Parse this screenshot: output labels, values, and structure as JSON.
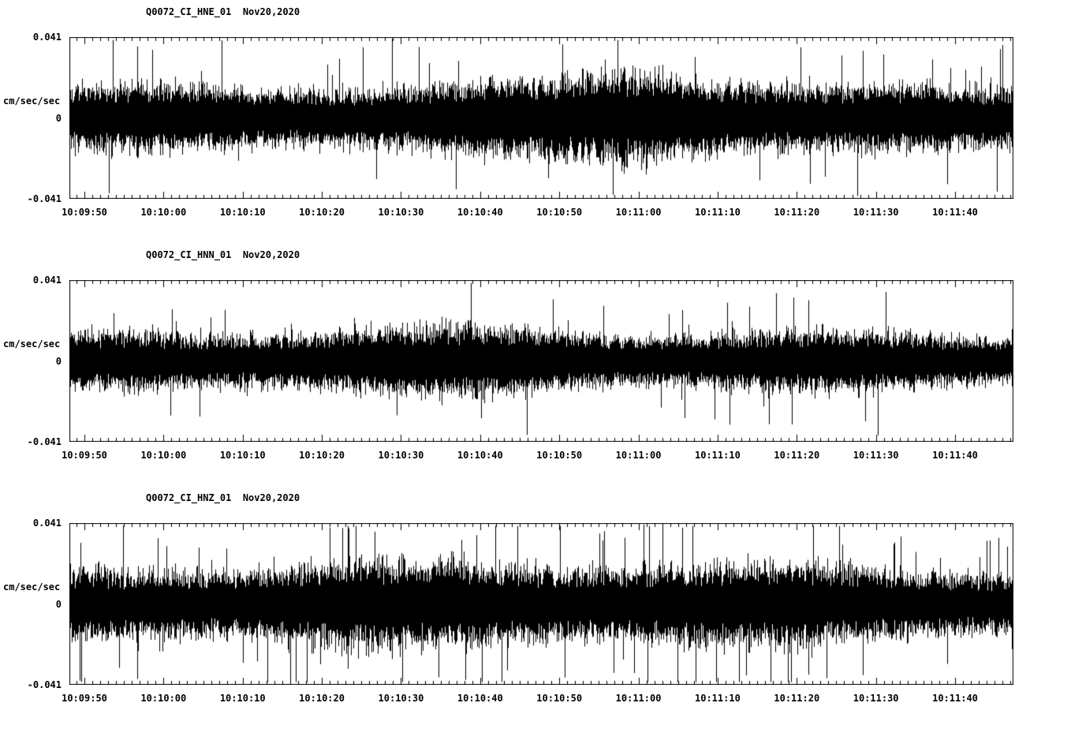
{
  "page": {
    "background": "#ffffff",
    "trace_color": "#000000",
    "axis_color": "#000000"
  },
  "chart_data": [
    {
      "type": "line",
      "kind": "seismogram",
      "title": "Q0072_CI_HNE_01  Nov20,2020",
      "station": "Q0072_CI_HNE_01",
      "date": "Nov20,2020",
      "ylabel": "cm/sec/sec",
      "yticklabels": [
        "0.041",
        "0",
        "-0.041"
      ],
      "ylim": [
        -0.041,
        0.041
      ],
      "x_tick_interval_seconds": 10,
      "xticklabels": [
        "10:09:50",
        "10:10:00",
        "10:10:10",
        "10:10:20",
        "10:10:30",
        "10:10:40",
        "10:10:50",
        "10:11:00",
        "10:11:10",
        "10:11:20",
        "10:11:30",
        "10:11:40"
      ],
      "grid": false,
      "legend": "none",
      "series": [
        {
          "name": "Q0072_CI_HNE_01",
          "signal": "seismic-noise",
          "seed": 20201,
          "tail_prob": 0.02,
          "envelope": [
            [
              0,
              0.0135
            ],
            [
              0.2,
              0.0125
            ],
            [
              0.4,
              0.013
            ],
            [
              0.52,
              0.015
            ],
            [
              0.6,
              0.0205
            ],
            [
              0.68,
              0.018
            ],
            [
              0.78,
              0.0135
            ],
            [
              0.9,
              0.013
            ],
            [
              1,
              0.0145
            ]
          ],
          "spikes": [
            [
              0.342,
              0.041
            ]
          ]
        }
      ]
    },
    {
      "type": "line",
      "kind": "seismogram",
      "title": "Q0072_CI_HNN_01  Nov20,2020",
      "station": "Q0072_CI_HNN_01",
      "date": "Nov20,2020",
      "ylabel": "cm/sec/sec",
      "yticklabels": [
        "0.041",
        "0",
        "-0.041"
      ],
      "ylim": [
        -0.041,
        0.041
      ],
      "x_tick_interval_seconds": 10,
      "xticklabels": [
        "10:09:50",
        "10:10:00",
        "10:10:10",
        "10:10:20",
        "10:10:30",
        "10:10:40",
        "10:10:50",
        "10:11:00",
        "10:11:10",
        "10:11:20",
        "10:11:30",
        "10:11:40"
      ],
      "grid": false,
      "legend": "none",
      "series": [
        {
          "name": "Q0072_CI_HNN_01",
          "signal": "seismic-noise",
          "seed": 20202,
          "tail_prob": 0.015,
          "envelope": [
            [
              0,
              0.0115
            ],
            [
              0.3,
              0.0125
            ],
            [
              0.42,
              0.013
            ],
            [
              0.6,
              0.0115
            ],
            [
              0.8,
              0.012
            ],
            [
              1,
              0.0115
            ]
          ],
          "spikes": [
            [
              0.856,
              -0.0385
            ]
          ]
        }
      ]
    },
    {
      "type": "line",
      "kind": "seismogram",
      "title": "Q0072_CI_HNZ_01  Nov20,2020",
      "station": "Q0072_CI_HNZ_01",
      "date": "Nov20,2020",
      "ylabel": "cm/sec/sec",
      "yticklabels": [
        "0.041",
        "0",
        "-0.041"
      ],
      "ylim": [
        -0.041,
        0.041
      ],
      "x_tick_interval_seconds": 10,
      "xticklabels": [
        "10:09:50",
        "10:10:00",
        "10:10:10",
        "10:10:20",
        "10:10:30",
        "10:10:40",
        "10:10:50",
        "10:11:00",
        "10:11:10",
        "10:11:20",
        "10:11:30",
        "10:11:40"
      ],
      "grid": false,
      "legend": "none",
      "series": [
        {
          "name": "Q0072_CI_HNZ_01",
          "signal": "seismic-noise",
          "seed": 20203,
          "tail_prob": 0.04,
          "envelope": [
            [
              0,
              0.015
            ],
            [
              0.3,
              0.016
            ],
            [
              0.55,
              0.0165
            ],
            [
              0.75,
              0.016
            ],
            [
              1,
              0.0155
            ]
          ],
          "spikes": [
            [
              0.608,
              0.041
            ],
            [
              0.52,
              0.034
            ],
            [
              0.93,
              -0.031
            ],
            [
              0.975,
              0.028
            ]
          ]
        }
      ]
    }
  ]
}
